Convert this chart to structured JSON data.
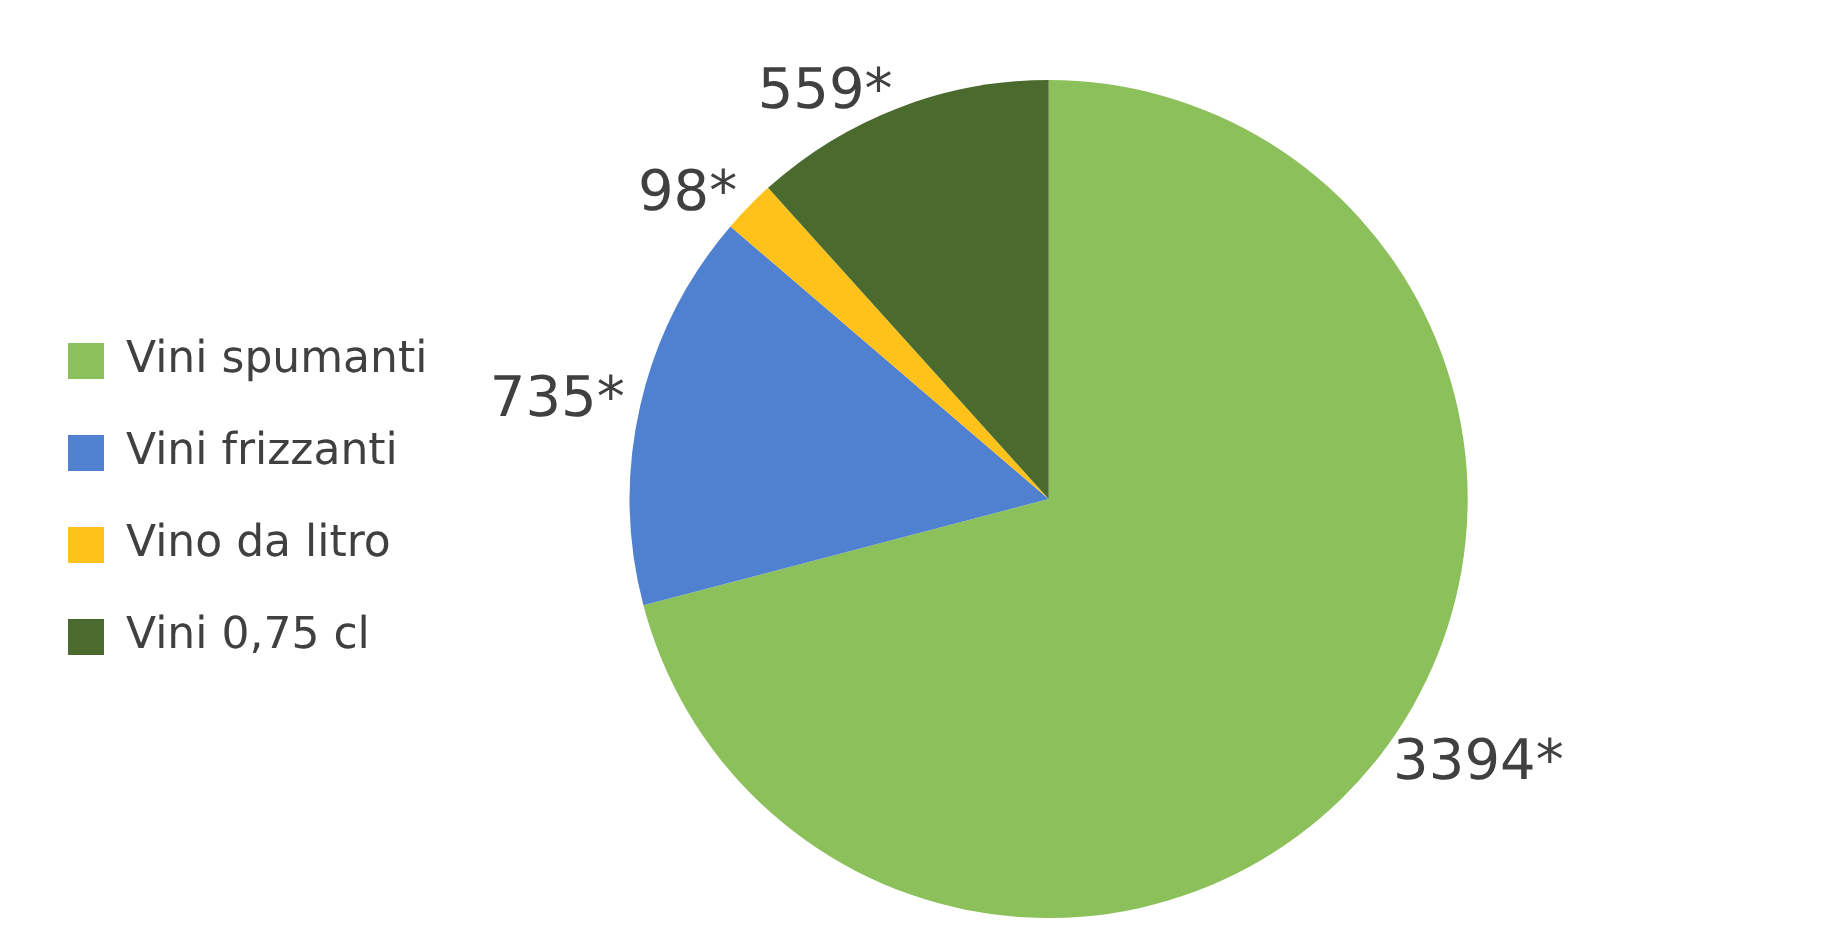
{
  "chart_data": {
    "type": "pie",
    "categories": [
      "Vini spumanti",
      "Vini frizzanti",
      "Vino da litro",
      "Vini 0,75 cl"
    ],
    "values": [
      3394,
      735,
      98,
      559
    ],
    "colors": [
      "#8cc05a",
      "#5080d0",
      "#ffc21a",
      "#4b6b2e"
    ],
    "value_labels": [
      "3394*",
      "735*",
      "98*",
      "559*"
    ],
    "legend": "left"
  }
}
